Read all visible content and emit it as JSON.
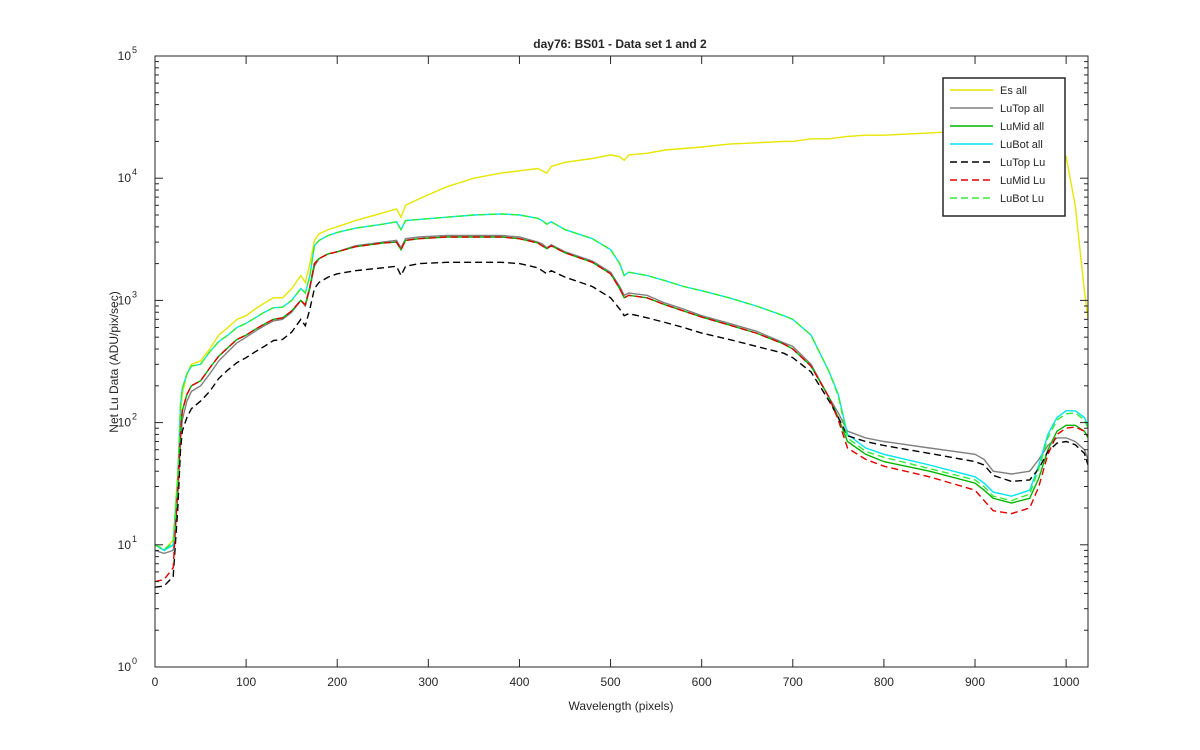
{
  "chart_data": {
    "type": "line",
    "title": "day76: BS01 - Data set 1 and 2",
    "xlabel": "Wavelength (pixels)",
    "ylabel": "Net Lu Data (ADU/pix/sec)",
    "xlim": [
      0,
      1024
    ],
    "ylim": [
      1,
      100000
    ],
    "yscale": "log",
    "grid": false,
    "legend_position": "top-right",
    "x_ticks": [
      0,
      100,
      200,
      300,
      400,
      500,
      600,
      700,
      800,
      900,
      1000
    ],
    "y_ticks": [
      {
        "value": 1,
        "base": "10",
        "exp": "0"
      },
      {
        "value": 10,
        "base": "10",
        "exp": "1"
      },
      {
        "value": 100,
        "base": "10",
        "exp": "2"
      },
      {
        "value": 1000,
        "base": "10",
        "exp": "3"
      },
      {
        "value": 10000,
        "base": "10",
        "exp": "4"
      },
      {
        "value": 100000,
        "base": "10",
        "exp": "5"
      }
    ],
    "x": [
      0,
      10,
      20,
      25,
      28,
      30,
      35,
      40,
      50,
      60,
      70,
      80,
      90,
      100,
      110,
      120,
      130,
      140,
      150,
      160,
      165,
      170,
      175,
      180,
      190,
      200,
      220,
      250,
      265,
      270,
      275,
      290,
      320,
      350,
      380,
      400,
      420,
      425,
      430,
      435,
      450,
      480,
      500,
      510,
      515,
      520,
      540,
      560,
      580,
      600,
      630,
      660,
      690,
      700,
      720,
      740,
      750,
      760,
      780,
      800,
      850,
      900,
      910,
      920,
      940,
      960,
      970,
      980,
      990,
      1000,
      1010,
      1020,
      1024
    ],
    "series": [
      {
        "name": "Es  all",
        "color": "#e6e600",
        "dash": "solid",
        "values": [
          10,
          9,
          11,
          40,
          120,
          170,
          250,
          300,
          320,
          400,
          520,
          600,
          700,
          750,
          850,
          950,
          1050,
          1050,
          1250,
          1600,
          1400,
          2000,
          3100,
          3500,
          3800,
          4000,
          4500,
          5200,
          5600,
          4800,
          6000,
          6800,
          8500,
          10000,
          11000,
          11500,
          12000,
          11500,
          11000,
          12500,
          13500,
          14500,
          15500,
          15000,
          14000,
          15500,
          16000,
          17000,
          17500,
          18000,
          19000,
          19500,
          20000,
          20000,
          21000,
          21000,
          21500,
          22000,
          22500,
          22500,
          23500,
          24500,
          24500,
          24500,
          24000,
          23500,
          23000,
          22000,
          20000,
          15000,
          6000,
          1200,
          700
        ]
      },
      {
        "name": "LuTop  all",
        "color": "#808080",
        "dash": "solid",
        "values": [
          9,
          8.5,
          9,
          25,
          70,
          105,
          150,
          180,
          200,
          250,
          320,
          380,
          450,
          500,
          560,
          620,
          680,
          700,
          800,
          1000,
          900,
          1250,
          1900,
          2200,
          2400,
          2500,
          2800,
          3000,
          3100,
          2700,
          3200,
          3300,
          3400,
          3400,
          3400,
          3300,
          3000,
          2900,
          2700,
          2850,
          2500,
          2100,
          1700,
          1300,
          1100,
          1150,
          1100,
          950,
          850,
          750,
          650,
          560,
          450,
          420,
          300,
          160,
          120,
          85,
          75,
          70,
          62,
          55,
          50,
          40,
          38,
          40,
          50,
          65,
          75,
          75,
          70,
          60,
          50
        ]
      },
      {
        "name": "LuMid  all",
        "color": "#00b400",
        "dash": "solid",
        "values": [
          10,
          9,
          10,
          30,
          85,
          125,
          170,
          200,
          220,
          280,
          350,
          410,
          480,
          520,
          580,
          640,
          700,
          720,
          820,
          1000,
          920,
          1300,
          2000,
          2200,
          2400,
          2500,
          2750,
          2950,
          3000,
          2600,
          3100,
          3200,
          3300,
          3300,
          3300,
          3200,
          2950,
          2800,
          2650,
          2800,
          2450,
          2050,
          1650,
          1250,
          1050,
          1100,
          1050,
          920,
          820,
          730,
          630,
          540,
          440,
          400,
          290,
          160,
          110,
          70,
          55,
          48,
          40,
          32,
          28,
          24,
          22,
          24,
          35,
          60,
          85,
          95,
          95,
          85,
          75
        ]
      },
      {
        "name": "LuBot  all",
        "color": "#00e5ee",
        "dash": "solid",
        "values": [
          10,
          9,
          10,
          35,
          140,
          190,
          250,
          290,
          300,
          380,
          460,
          520,
          600,
          650,
          720,
          800,
          870,
          880,
          1000,
          1250,
          1150,
          1600,
          2800,
          3100,
          3400,
          3600,
          3900,
          4200,
          4400,
          3800,
          4500,
          4600,
          4800,
          5000,
          5100,
          5000,
          4700,
          4500,
          4200,
          4400,
          3800,
          3200,
          2600,
          2000,
          1600,
          1700,
          1600,
          1450,
          1300,
          1200,
          1050,
          900,
          750,
          700,
          520,
          260,
          170,
          80,
          62,
          55,
          45,
          36,
          32,
          27,
          25,
          28,
          45,
          80,
          110,
          125,
          125,
          110,
          95
        ]
      },
      {
        "name": "LuTop  Lu",
        "color": "#000000",
        "dash": "dashed",
        "values": [
          4.5,
          4.6,
          5.5,
          20,
          60,
          85,
          110,
          130,
          150,
          180,
          230,
          270,
          310,
          340,
          380,
          420,
          470,
          480,
          550,
          700,
          620,
          850,
          1250,
          1400,
          1550,
          1650,
          1750,
          1850,
          1900,
          1600,
          1900,
          2000,
          2050,
          2050,
          2050,
          2000,
          1850,
          1750,
          1650,
          1750,
          1550,
          1300,
          1050,
          850,
          750,
          780,
          720,
          660,
          600,
          540,
          480,
          420,
          370,
          340,
          260,
          150,
          110,
          78,
          70,
          65,
          56,
          48,
          45,
          37,
          33,
          34,
          42,
          58,
          68,
          70,
          66,
          56,
          45
        ]
      },
      {
        "name": "LuMid  Lu",
        "color": "#e00000",
        "dash": "dashed",
        "values": [
          5,
          5.2,
          6.5,
          30,
          85,
          125,
          170,
          200,
          220,
          280,
          350,
          410,
          480,
          520,
          580,
          640,
          700,
          720,
          820,
          1000,
          920,
          1300,
          2000,
          2200,
          2400,
          2500,
          2750,
          2950,
          3000,
          2600,
          3100,
          3200,
          3300,
          3300,
          3300,
          3200,
          2950,
          2800,
          2650,
          2800,
          2450,
          2050,
          1650,
          1250,
          1050,
          1100,
          1050,
          920,
          820,
          730,
          630,
          540,
          440,
          400,
          290,
          160,
          105,
          62,
          50,
          44,
          36,
          28,
          23,
          19,
          18,
          20,
          30,
          55,
          80,
          90,
          92,
          85,
          78
        ]
      },
      {
        "name": "LuBot  Lu",
        "color": "#33ee33",
        "dash": "dashed",
        "values": [
          10,
          9.2,
          10.5,
          35,
          140,
          190,
          250,
          290,
          300,
          380,
          460,
          520,
          600,
          650,
          720,
          800,
          870,
          880,
          1000,
          1250,
          1150,
          1600,
          2800,
          3100,
          3400,
          3600,
          3900,
          4200,
          4400,
          3800,
          4500,
          4600,
          4800,
          5000,
          5100,
          5000,
          4700,
          4500,
          4200,
          4400,
          3800,
          3200,
          2600,
          2000,
          1600,
          1700,
          1600,
          1450,
          1300,
          1200,
          1050,
          900,
          750,
          700,
          520,
          260,
          165,
          75,
          58,
          52,
          42,
          34,
          30,
          25,
          23,
          26,
          42,
          75,
          105,
          118,
          120,
          105,
          90
        ]
      }
    ]
  }
}
